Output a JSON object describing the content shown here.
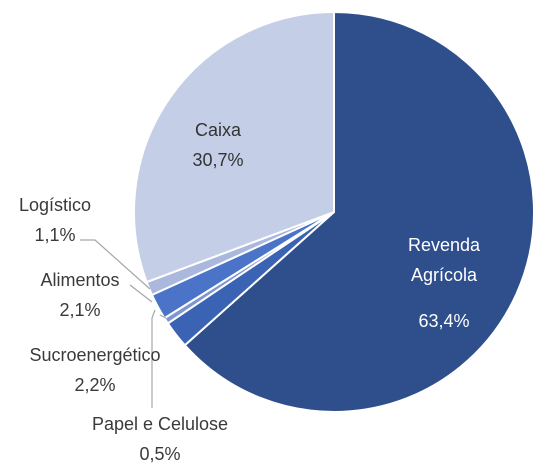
{
  "chart_data": {
    "type": "pie",
    "categories": [
      "Revenda Agrícola",
      "Sucroenergético",
      "Papel e Celulose",
      "Alimentos",
      "Logístico",
      "Caixa"
    ],
    "values": [
      63.4,
      2.2,
      0.5,
      2.1,
      1.1,
      30.7
    ],
    "value_labels": [
      "63,4%",
      "2,2%",
      "0,5%",
      "2,1%",
      "1,1%",
      "30,7%"
    ],
    "colors": [
      "#2f4f8c",
      "#3b63b3",
      "#7f96cf",
      "#4b74c9",
      "#aab8de",
      "#c5cee7"
    ]
  }
}
